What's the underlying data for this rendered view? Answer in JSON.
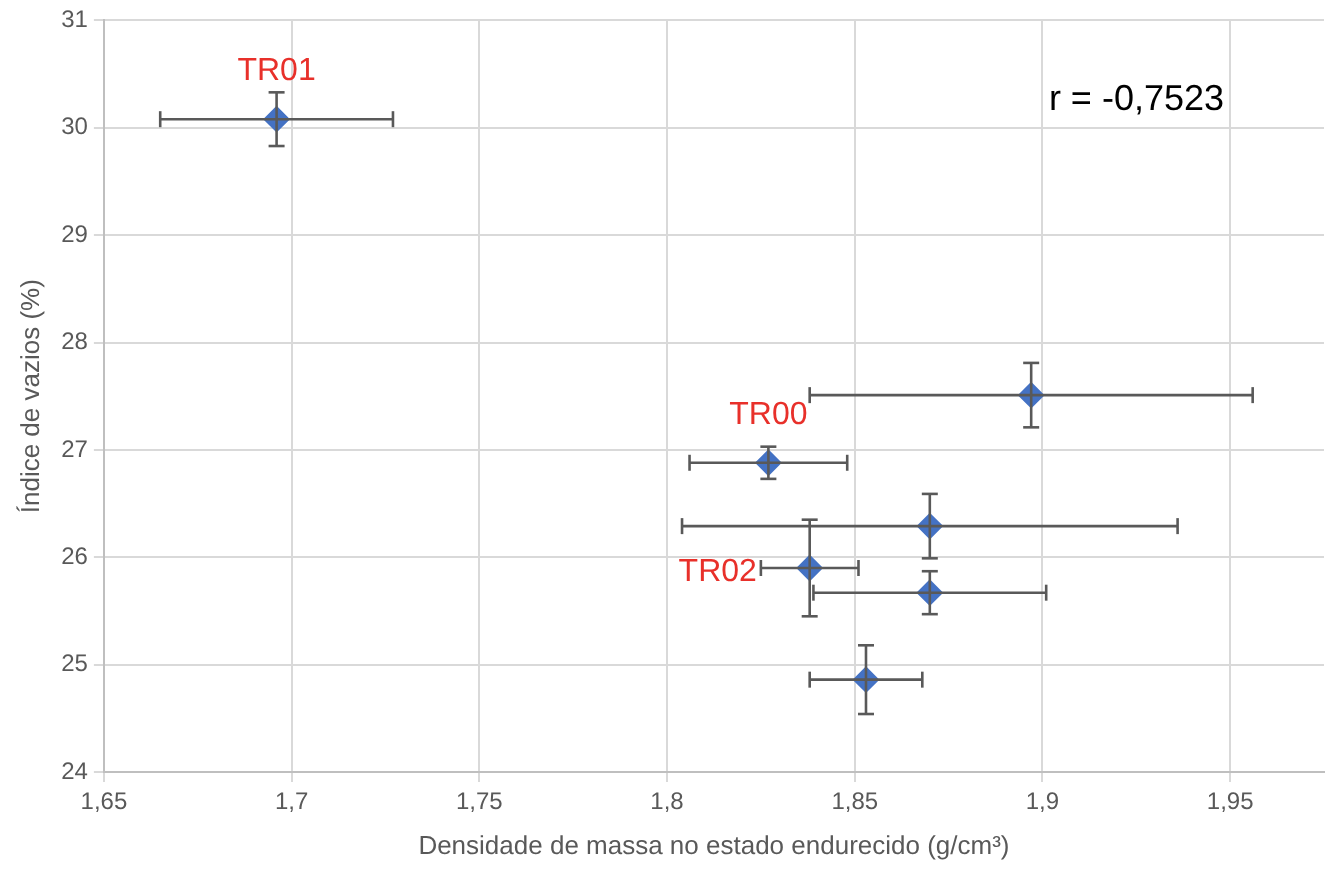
{
  "chart_data": {
    "type": "scatter",
    "xlabel": "Densidade de massa no estado endurecido (g/cm³)",
    "ylabel": "Índice de vazios (%)",
    "x": [
      1.696,
      1.897,
      1.827,
      1.87,
      1.838,
      1.87,
      1.853
    ],
    "values": [
      30.08,
      27.51,
      26.88,
      26.29,
      25.9,
      25.67,
      24.86
    ],
    "errors": [
      0.25,
      0.3,
      0.15,
      0.3,
      0.45,
      0.2,
      0.32
    ],
    "xerrors": [
      0.031,
      0.059,
      0.021,
      0.066,
      0.013,
      0.031,
      0.015
    ],
    "color": "#4472c4",
    "marker": "diamond",
    "xlim": [
      1.65,
      1.975
    ],
    "xticks": [
      {
        "value": 1.65,
        "label": "1,65"
      },
      {
        "value": 1.7,
        "label": "1,7"
      },
      {
        "value": 1.75,
        "label": "1,75"
      },
      {
        "value": 1.8,
        "label": "1,8"
      },
      {
        "value": 1.85,
        "label": "1,85"
      },
      {
        "value": 1.9,
        "label": "1,9"
      },
      {
        "value": 1.95,
        "label": "1,95"
      }
    ],
    "ylim": [
      24,
      31
    ],
    "yticks": [
      24,
      25,
      26,
      27,
      28,
      29,
      30,
      31
    ],
    "grid": true,
    "annotations": [
      {
        "text": "TR01",
        "x": 1.696,
        "y": 30.08
      },
      {
        "text": "TR00",
        "x": 1.827,
        "y": 26.88
      },
      {
        "text": "TR02",
        "x": 1.838,
        "y": 25.9
      },
      "r = -0,7523"
    ]
  }
}
